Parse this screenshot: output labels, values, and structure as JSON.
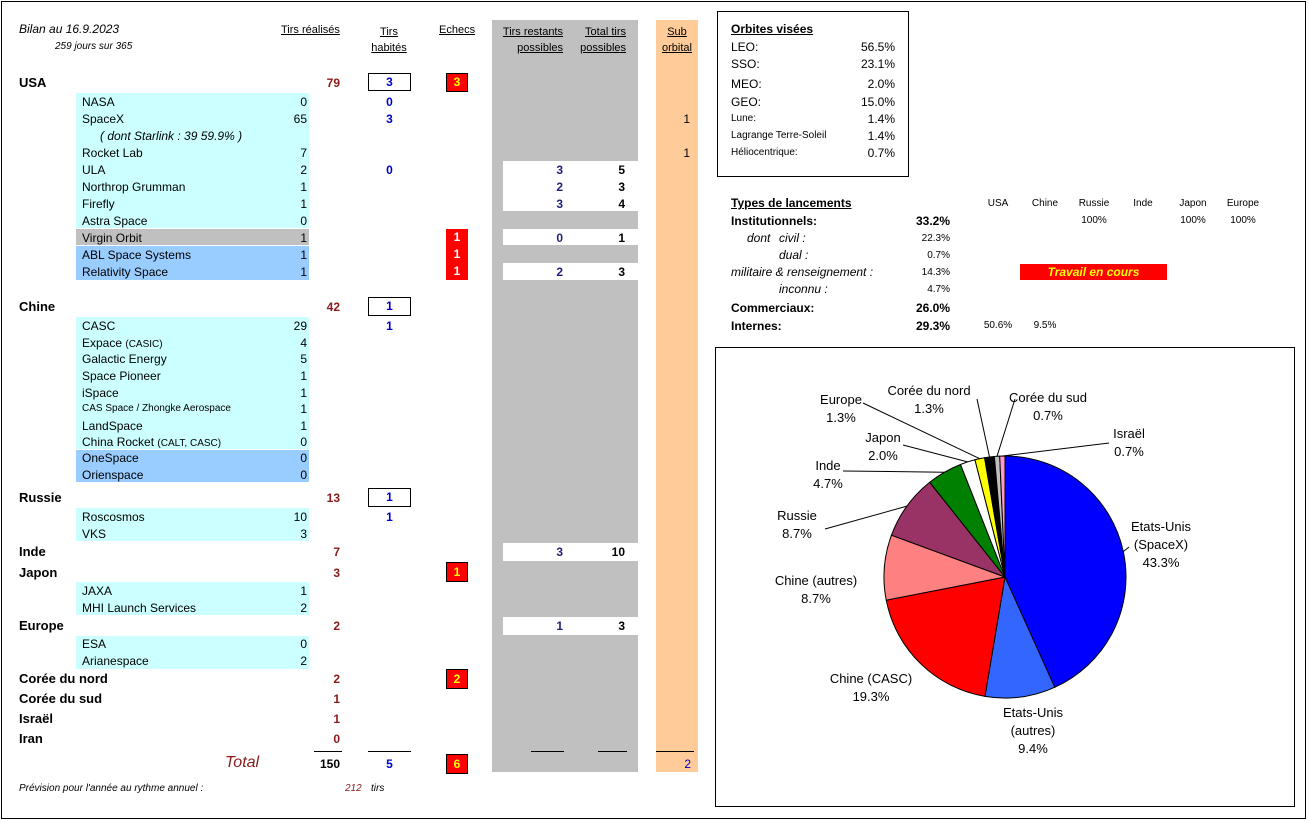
{
  "header": {
    "bilan": "Bilan au 16.9.2023",
    "jours": "259  jours sur 365",
    "col_tirs_realises": "Tirs réalisés",
    "col_tirs_habites_1": "Tirs",
    "col_tirs_habites_2": "habités",
    "col_echecs": "Echecs",
    "col_tirs_restants_1": "Tirs restants",
    "col_tirs_restants_2": "possibles",
    "col_total_tirs_1": "Total tirs",
    "col_total_tirs_2": "possibles",
    "col_sub_1": "Sub",
    "col_sub_2": "orbital"
  },
  "countries": {
    "usa": {
      "name": "USA",
      "total": "79",
      "habites": "3",
      "echecs": "3"
    },
    "chine": {
      "name": "Chine",
      "total": "42",
      "habites": "1"
    },
    "russie": {
      "name": "Russie",
      "total": "13",
      "habites": "1"
    },
    "inde": {
      "name": "Inde",
      "total": "7",
      "restants": "3",
      "total_possibles": "10"
    },
    "japon": {
      "name": "Japon",
      "total": "3",
      "echecs": "1"
    },
    "europe": {
      "name": "Europe",
      "total": "2",
      "restants": "1",
      "total_possibles": "3"
    },
    "coree_nord": {
      "name": "Corée du nord",
      "total": "2",
      "echecs": "2"
    },
    "coree_sud": {
      "name": "Corée du sud",
      "total": "1"
    },
    "israel": {
      "name": "Israël",
      "total": "1"
    },
    "iran": {
      "name": "Iran",
      "total": "0"
    }
  },
  "usa_rows": {
    "nasa": {
      "name": "NASA",
      "value": "0",
      "habites": "0"
    },
    "spacex": {
      "name": "SpaceX",
      "value": "65",
      "habites": "3",
      "sub": "1"
    },
    "starlink": {
      "label": "( dont Starlink :  39     59.9%  )"
    },
    "rocketlab": {
      "name": "Rocket Lab",
      "value": "7",
      "sub": "1"
    },
    "ula": {
      "name": "ULA",
      "value": "2",
      "habites": "0",
      "restants": "3",
      "total_possibles": "5"
    },
    "northrop": {
      "name": "Northrop Grumman",
      "value": "1",
      "restants": "2",
      "total_possibles": "3"
    },
    "firefly": {
      "name": "Firefly",
      "value": "1",
      "restants": "3",
      "total_possibles": "4"
    },
    "astra": {
      "name": "Astra Space",
      "value": "0"
    },
    "virgin": {
      "name": "Virgin Orbit",
      "value": "1",
      "echecs": "1",
      "restants": "0",
      "total_possibles": "1"
    },
    "abl": {
      "name": "ABL Space Systems",
      "value": "1",
      "echecs": "1"
    },
    "relativity": {
      "name": "Relativity Space",
      "value": "1",
      "echecs": "1",
      "restants": "2",
      "total_possibles": "3"
    }
  },
  "chine_rows": {
    "casc": {
      "name": "CASC",
      "value": "29",
      "habites": "1"
    },
    "expace": {
      "name": "Expace",
      "suffix": "(CASIC)",
      "value": "4"
    },
    "galactic": {
      "name": "Galactic Energy",
      "value": "5"
    },
    "pioneer": {
      "name": "Space Pioneer",
      "value": "1"
    },
    "ispace": {
      "name": "iSpace",
      "value": "1"
    },
    "casspace": {
      "name": "CAS Space / Zhongke Aerospace",
      "value": "1"
    },
    "landspace": {
      "name": "LandSpace",
      "value": "1"
    },
    "chinarocket": {
      "name": "China Rocket",
      "suffix": "(CALT, CASC)",
      "value": "0"
    },
    "onespace": {
      "name": "OneSpace",
      "value": "0"
    },
    "orienspace": {
      "name": "Orienspace",
      "value": "0"
    }
  },
  "russie_rows": {
    "roscosmos": {
      "name": "Roscosmos",
      "value": "10",
      "habites": "1"
    },
    "vks": {
      "name": "VKS",
      "value": "3"
    }
  },
  "japon_rows": {
    "jaxa": {
      "name": "JAXA",
      "value": "1"
    },
    "mhi": {
      "name": "MHI Launch Services",
      "value": "2"
    }
  },
  "europe_rows": {
    "esa": {
      "name": "ESA",
      "value": "0"
    },
    "arianespace": {
      "name": "Arianespace",
      "value": "2"
    }
  },
  "totals": {
    "label": "Total",
    "tirs": "150",
    "habites": "5",
    "echecs": "6",
    "sub": "2"
  },
  "prevision": {
    "label": "Prévision pour l'année au rythme annuel :",
    "value": "212",
    "unit": "tirs"
  },
  "orbites": {
    "title": "Orbites visées",
    "rows": [
      {
        "name": "LEO:",
        "value": "56.5%"
      },
      {
        "name": "SSO:",
        "value": "23.1%"
      },
      {
        "name": "MEO:",
        "value": "2.0%"
      },
      {
        "name": "GEO:",
        "value": "15.0%"
      },
      {
        "name": "Lune:",
        "value": "1.4%"
      },
      {
        "name": "Lagrange Terre-Soleil",
        "value": "1.4%"
      },
      {
        "name": "Héliocentrique:",
        "value": "0.7%"
      }
    ]
  },
  "types": {
    "title": "Types de lancements",
    "cols": [
      "USA",
      "Chine",
      "Russie",
      "Inde",
      "Japon",
      "Europe"
    ],
    "institutionnels": {
      "label": "Institutionnels:",
      "value": "33.2%",
      "russie": "100%",
      "japon": "100%",
      "europe": "100%"
    },
    "dont": {
      "label": "dont",
      "civil": "civil :",
      "value": "22.3%"
    },
    "dual": {
      "label": "dual :",
      "value": "0.7%"
    },
    "militaire": {
      "label": "militaire & renseignement :",
      "value": "14.3%"
    },
    "inconnu": {
      "label": "inconnu :",
      "value": "4.7%"
    },
    "commerciaux": {
      "label": "Commerciaux:",
      "value": "26.0%"
    },
    "internes": {
      "label": "Internes:",
      "value": "29.3%",
      "usa": "50.6%",
      "chine": "9.5%"
    },
    "travail": "Travail en cours"
  },
  "chart_data": {
    "type": "pie",
    "title": "",
    "slices": [
      {
        "name": "Etats-Unis (SpaceX)",
        "line1": "Etats-Unis",
        "line2": "(SpaceX)",
        "pct": "43.3%",
        "value": 43.3,
        "color": "#0000ff"
      },
      {
        "name": "Etats-Unis (autres)",
        "line1": "Etats-Unis",
        "line2": "(autres)",
        "pct": "9.4%",
        "value": 9.4,
        "color": "#3366ff"
      },
      {
        "name": "Chine (CASC)",
        "line1": "Chine (CASC)",
        "line2": "",
        "pct": "19.3%",
        "value": 19.3,
        "color": "#ff0000"
      },
      {
        "name": "Chine (autres)",
        "line1": "Chine (autres)",
        "line2": "",
        "pct": "8.7%",
        "value": 8.7,
        "color": "#ff8080"
      },
      {
        "name": "Russie",
        "line1": "Russie",
        "line2": "",
        "pct": "8.7%",
        "value": 8.7,
        "color": "#993366"
      },
      {
        "name": "Inde",
        "line1": "Inde",
        "line2": "",
        "pct": "4.7%",
        "value": 4.7,
        "color": "#008000"
      },
      {
        "name": "Japon",
        "line1": "Japon",
        "line2": "",
        "pct": "2.0%",
        "value": 2.0,
        "color": "#ffffff"
      },
      {
        "name": "Europe",
        "line1": "Europe",
        "line2": "",
        "pct": "1.3%",
        "value": 1.3,
        "color": "#ffff00"
      },
      {
        "name": "Corée du nord",
        "line1": "Corée du nord",
        "line2": "",
        "pct": "1.3%",
        "value": 1.3,
        "color": "#000000"
      },
      {
        "name": "Corée du sud",
        "line1": "Corée du sud",
        "line2": "",
        "pct": "0.7%",
        "value": 0.7,
        "color": "#c0c0c0"
      },
      {
        "name": "Israël",
        "line1": "Israël",
        "line2": "",
        "pct": "0.7%",
        "value": 0.7,
        "color": "#ff99cc"
      }
    ]
  }
}
